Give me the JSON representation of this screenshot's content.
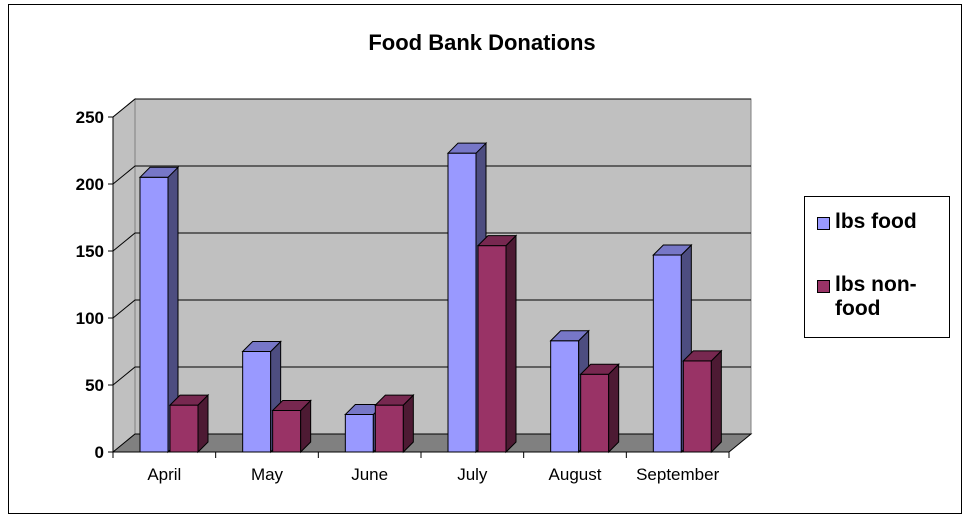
{
  "chart_data": {
    "type": "bar",
    "title": "Food Bank Donations",
    "categories": [
      "April",
      "May",
      "June",
      "July",
      "August",
      "September"
    ],
    "series": [
      {
        "name": "lbs food",
        "values": [
          205,
          75,
          28,
          223,
          83,
          147
        ],
        "color": "#9999ff"
      },
      {
        "name": "lbs non-food",
        "values": [
          35,
          31,
          35,
          154,
          58,
          68
        ],
        "color": "#993366"
      }
    ],
    "yticks": [
      "0",
      "50",
      "100",
      "150",
      "200",
      "250"
    ],
    "ylim": [
      0,
      250
    ],
    "grid": true,
    "three_d": true,
    "legend_position": "right",
    "wall_color": "#c0c0c0",
    "floor_color": "#808080"
  }
}
